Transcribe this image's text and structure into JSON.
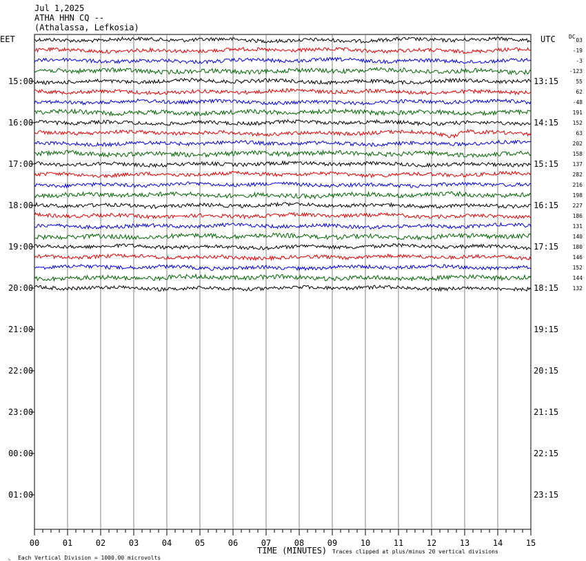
{
  "header": {
    "date": "Jul 1,2025",
    "station": "ATHA HHN CQ --",
    "location": "(Athalassa, Lefkosia)"
  },
  "left_timezone": "EET",
  "right_timezone": "UTC",
  "dc_label": "DC",
  "left_hour_labels": [
    "15:00",
    "16:00",
    "17:00",
    "18:00",
    "19:00",
    "20:00",
    "21:00",
    "22:00",
    "23:00",
    "00:00",
    "01:00"
  ],
  "right_hour_labels": [
    "13:15",
    "14:15",
    "15:15",
    "16:15",
    "17:15",
    "18:15",
    "19:15",
    "20:15",
    "21:15",
    "22:15",
    "23:15"
  ],
  "dc_offsets": [
    "03",
    "-19",
    "-3",
    "-123",
    "55",
    "62",
    "-48",
    "191",
    "152",
    "63",
    "202",
    "158",
    "137",
    "282",
    "216",
    "198",
    "227",
    "186",
    "131",
    "140",
    "180",
    "146",
    "152",
    "144",
    "132"
  ],
  "footer": {
    "scale": "Each Vertical Division = 1000.00 microvolts",
    "xlabel": "TIME (MINUTES)",
    "clip_note": "Traces clipped at plus/minus 20 vertical divisions"
  },
  "chart_data": {
    "type": "line",
    "title": "ATHA HHN CQ --",
    "xlabel": "TIME (MINUTES)",
    "ylabel": "",
    "x_ticks": [
      "00",
      "01",
      "02",
      "03",
      "04",
      "05",
      "06",
      "07",
      "08",
      "09",
      "10",
      "11",
      "12",
      "13",
      "14",
      "15"
    ],
    "xlim": [
      0,
      15
    ],
    "trace_minutes": 15,
    "trace_count": 25,
    "rows_total": 48,
    "trace_colors": [
      "#000000",
      "#e00000",
      "#0000e0",
      "#006400"
    ],
    "events": [
      {
        "trace": 9,
        "minute": 12.6,
        "note": "long-period swell on red trace"
      }
    ],
    "grid": true
  }
}
